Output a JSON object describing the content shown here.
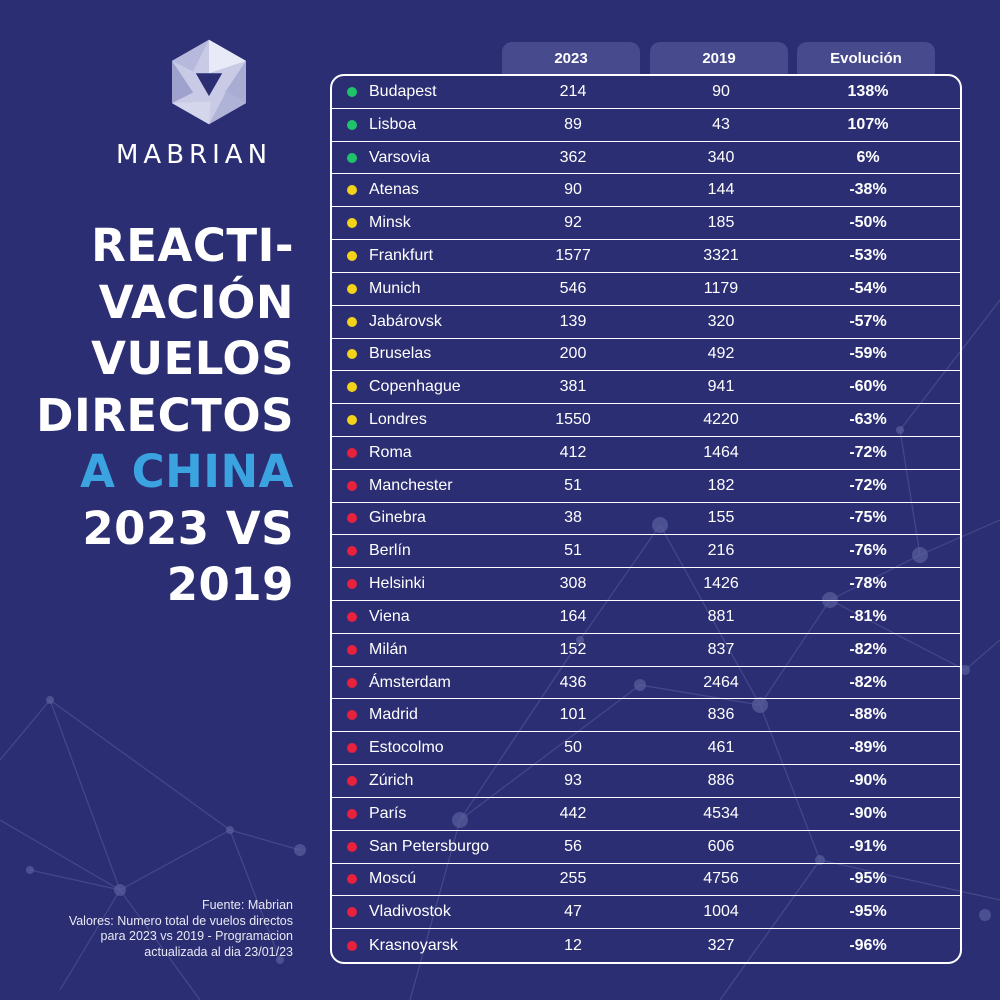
{
  "brand": {
    "name": "MABRIAN",
    "logo_icon": "hexagon-logo-icon"
  },
  "headline": {
    "lines": [
      "REACTI-",
      "VACIÓN",
      "VUELOS",
      "DIRECTOS",
      "A CHINA",
      "2023 VS",
      "2019"
    ],
    "accent_color": "#3aa3e0"
  },
  "footnote": {
    "lines": [
      "Fuente: Mabrian",
      "Valores: Numero total de vuelos directos",
      "para 2023 vs 2019 -  Programacion",
      "actualizada al dia  23/01/23"
    ]
  },
  "table": {
    "headers": [
      "2023",
      "2019",
      "Evolución"
    ],
    "status_colors": {
      "green": "#1fc46a",
      "yellow": "#f3d21a",
      "red": "#e8213f"
    },
    "rows": [
      {
        "status": "green",
        "city": "Budapest",
        "v2023": "214",
        "v2019": "90",
        "evolution": "138%"
      },
      {
        "status": "green",
        "city": "Lisboa",
        "v2023": "89",
        "v2019": "43",
        "evolution": "107%"
      },
      {
        "status": "green",
        "city": "Varsovia",
        "v2023": "362",
        "v2019": "340",
        "evolution": "6%"
      },
      {
        "status": "yellow",
        "city": "Atenas",
        "v2023": "90",
        "v2019": "144",
        "evolution": "-38%"
      },
      {
        "status": "yellow",
        "city": "Minsk",
        "v2023": "92",
        "v2019": "185",
        "evolution": "-50%"
      },
      {
        "status": "yellow",
        "city": "Frankfurt",
        "v2023": "1577",
        "v2019": "3321",
        "evolution": "-53%"
      },
      {
        "status": "yellow",
        "city": "Munich",
        "v2023": "546",
        "v2019": "1179",
        "evolution": "-54%"
      },
      {
        "status": "yellow",
        "city": "Jabárovsk",
        "v2023": "139",
        "v2019": "320",
        "evolution": "-57%"
      },
      {
        "status": "yellow",
        "city": "Bruselas",
        "v2023": "200",
        "v2019": "492",
        "evolution": "-59%"
      },
      {
        "status": "yellow",
        "city": "Copenhague",
        "v2023": "381",
        "v2019": "941",
        "evolution": "-60%"
      },
      {
        "status": "yellow",
        "city": "Londres",
        "v2023": "1550",
        "v2019": "4220",
        "evolution": "-63%"
      },
      {
        "status": "red",
        "city": "Roma",
        "v2023": "412",
        "v2019": "1464",
        "evolution": "-72%"
      },
      {
        "status": "red",
        "city": "Manchester",
        "v2023": "51",
        "v2019": "182",
        "evolution": "-72%"
      },
      {
        "status": "red",
        "city": "Ginebra",
        "v2023": "38",
        "v2019": "155",
        "evolution": "-75%"
      },
      {
        "status": "red",
        "city": "Berlín",
        "v2023": "51",
        "v2019": "216",
        "evolution": "-76%"
      },
      {
        "status": "red",
        "city": "Helsinki",
        "v2023": "308",
        "v2019": "1426",
        "evolution": "-78%"
      },
      {
        "status": "red",
        "city": "Viena",
        "v2023": "164",
        "v2019": "881",
        "evolution": "-81%"
      },
      {
        "status": "red",
        "city": "Milán",
        "v2023": "152",
        "v2019": "837",
        "evolution": "-82%"
      },
      {
        "status": "red",
        "city": "Ámsterdam",
        "v2023": "436",
        "v2019": "2464",
        "evolution": "-82%"
      },
      {
        "status": "red",
        "city": "Madrid",
        "v2023": "101",
        "v2019": "836",
        "evolution": "-88%"
      },
      {
        "status": "red",
        "city": "Estocolmo",
        "v2023": "50",
        "v2019": "461",
        "evolution": "-89%"
      },
      {
        "status": "red",
        "city": "Zúrich",
        "v2023": "93",
        "v2019": "886",
        "evolution": "-90%"
      },
      {
        "status": "red",
        "city": "París",
        "v2023": "442",
        "v2019": "4534",
        "evolution": "-90%"
      },
      {
        "status": "red",
        "city": "San Petersburgo",
        "v2023": "56",
        "v2019": "606",
        "evolution": "-91%"
      },
      {
        "status": "red",
        "city": "Moscú",
        "v2023": "255",
        "v2019": "4756",
        "evolution": "-95%"
      },
      {
        "status": "red",
        "city": "Vladivostok",
        "v2023": "47",
        "v2019": "1004",
        "evolution": "-95%"
      },
      {
        "status": "red",
        "city": "Krasnoyarsk",
        "v2023": "12",
        "v2019": "327",
        "evolution": "-96%"
      }
    ]
  }
}
